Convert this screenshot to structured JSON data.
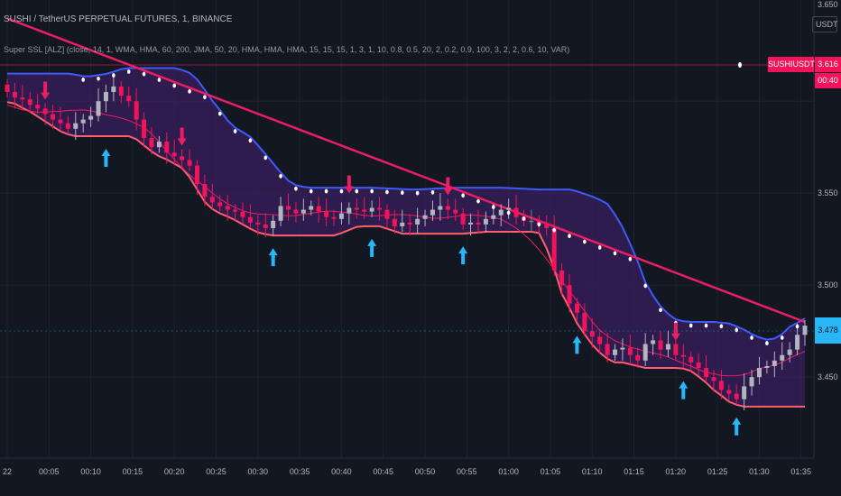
{
  "header": {
    "title": "SUSHI / TetherUS PERPETUAL FUTURES, 1, BINANCE",
    "indicator": "Super SSL [ALZ] (close, 14, 1, WMA, HMA, 60, 200, JMA, 50, 20, HMA, HMA, HMA, 15, 15, 15, 1, 3, 1, 10, 0.8, 0.5, 20, 2, 0.2, 0.9, 100, 3, 2, 2, 0.6, 10, VAR)"
  },
  "price_axis": {
    "currency": "USDT",
    "top_label": "3.650",
    "labels": [
      "3.550",
      "3.500",
      "3.450"
    ]
  },
  "badges": {
    "symbol": "SUSHIUSDTPERP",
    "symbol_price": "3.616",
    "countdown": "00:40",
    "last_price": "3.478"
  },
  "colors": {
    "background": "#131722",
    "bull": "#b2b5be",
    "bear": "#f2135a",
    "neutral": "#787b86",
    "ssl_upper": "#3d5afe",
    "ssl_lower": "#ff5e6c",
    "baseline": "#e91e63",
    "cloud": "#3a1f5d",
    "buy_arrow": "#29b6f6",
    "sell_arrow": "#e91e63",
    "dots": "#ffffff"
  },
  "chart_data": {
    "type": "candlestick",
    "timeframe": "1",
    "x_ticks": [
      "22",
      "00:05",
      "00:10",
      "00:15",
      "00:20",
      "00:25",
      "00:30",
      "00:35",
      "00:40",
      "00:45",
      "00:50",
      "00:55",
      "01:00",
      "01:05",
      "01:10",
      "01:15",
      "01:20",
      "01:25",
      "01:30",
      "01:35"
    ],
    "y_ticks": [
      3.55,
      3.5,
      3.45
    ],
    "ylim": [
      3.405,
      3.655
    ],
    "close_series_approx": [
      3.605,
      3.602,
      3.601,
      3.598,
      3.596,
      3.593,
      3.59,
      3.588,
      3.585,
      3.588,
      3.59,
      3.592,
      3.6,
      3.605,
      3.608,
      3.603,
      3.6,
      3.59,
      3.58,
      3.575,
      3.578,
      3.572,
      3.57,
      3.568,
      3.565,
      3.555,
      3.548,
      3.545,
      3.543,
      3.541,
      3.54,
      3.537,
      3.534,
      3.533,
      3.531,
      3.535,
      3.543,
      3.541,
      3.539,
      3.541,
      3.543,
      3.54,
      3.537,
      3.536,
      3.539,
      3.542,
      3.541,
      3.54,
      3.542,
      3.541,
      3.536,
      3.532,
      3.534,
      3.533,
      3.536,
      3.538,
      3.541,
      3.543,
      3.541,
      3.539,
      3.533,
      3.534,
      3.533,
      3.536,
      3.538,
      3.541,
      3.542,
      3.537,
      3.535,
      3.535,
      3.533,
      3.531,
      3.508,
      3.5,
      3.49,
      3.485,
      3.475,
      3.472,
      3.468,
      3.462,
      3.465,
      3.466,
      3.462,
      3.459,
      3.468,
      3.47,
      3.465,
      3.468,
      3.462,
      3.461,
      3.458,
      3.455,
      3.45,
      3.448,
      3.443,
      3.441,
      3.438,
      3.445,
      3.45,
      3.455,
      3.456,
      3.459,
      3.462,
      3.465,
      3.473,
      3.478
    ]
  }
}
